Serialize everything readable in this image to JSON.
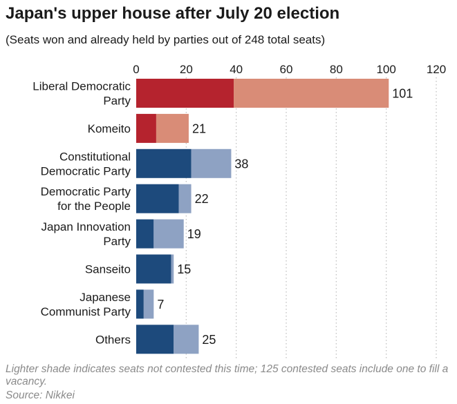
{
  "title": "Japan's upper house after July 20 election",
  "subtitle": "(Seats won and already held by parties out of 248 total seats)",
  "note": "Lighter shade indicates seats not contested this time; 125 contested seats include one to fill a vacancy.",
  "source": "Source: Nikkei",
  "colors": {
    "ruling_won": "#b5232e",
    "ruling_held": "#d98c77",
    "opposition_won": "#1d4a7c",
    "opposition_held": "#8ea2c3",
    "grid": "#bbbbbb"
  },
  "chart_data": {
    "type": "bar",
    "orientation": "horizontal",
    "stacked": true,
    "categories": [
      [
        "Liberal Democratic",
        "Party"
      ],
      [
        "Komeito"
      ],
      [
        "Constitutional",
        "Democratic Party"
      ],
      [
        "Democratic Party",
        "for the People"
      ],
      [
        "Japan Innovation",
        "Party"
      ],
      [
        "Sanseito"
      ],
      [
        "Japanese",
        "Communist Party"
      ],
      [
        "Others"
      ]
    ],
    "groups": [
      "ruling",
      "ruling",
      "opposition",
      "opposition",
      "opposition",
      "opposition",
      "opposition",
      "opposition"
    ],
    "series": [
      {
        "values": [
          39,
          8,
          22,
          17,
          7,
          14,
          3,
          15
        ]
      },
      {
        "values": [
          62,
          13,
          16,
          5,
          12,
          1,
          4,
          10
        ]
      }
    ],
    "totals": [
      101,
      21,
      38,
      22,
      19,
      15,
      7,
      25
    ],
    "xlim": [
      0,
      120
    ],
    "xticks": [
      0,
      20,
      40,
      60,
      80,
      100,
      120
    ],
    "axis_position": "top",
    "grid": true
  }
}
